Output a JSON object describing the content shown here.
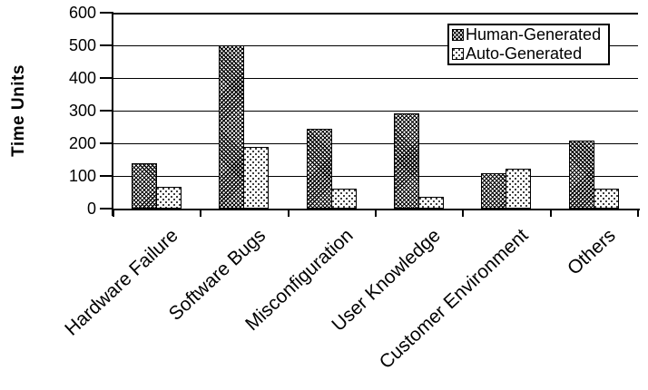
{
  "chart_data": {
    "type": "bar",
    "title": "",
    "ylabel": "Time Units",
    "xlabel": "",
    "categories": [
      "Hardware Failure",
      "Software Bugs",
      "Misconfiguration",
      "User Knowledge",
      "Customer Environment",
      "Others"
    ],
    "series": [
      {
        "name": "Human-Generated",
        "pattern": "crosshatch",
        "values": [
          140,
          500,
          245,
          293,
          108,
          208
        ]
      },
      {
        "name": "Auto-Generated",
        "pattern": "dots",
        "values": [
          68,
          188,
          61,
          35,
          122,
          61
        ]
      }
    ],
    "ylim": [
      0,
      600
    ],
    "yticks": [
      0,
      100,
      200,
      300,
      400,
      500,
      600
    ],
    "grid": true,
    "legend_position": "top-right",
    "colors": {
      "foreground": "#000000",
      "background": "#ffffff"
    }
  }
}
